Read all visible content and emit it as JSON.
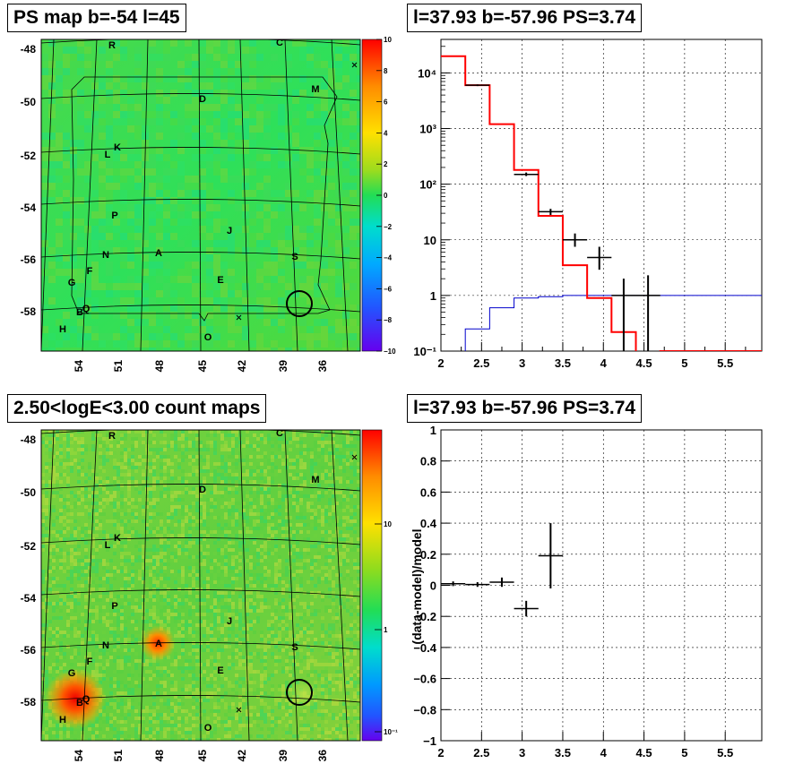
{
  "panels": {
    "top_left": {
      "title": "PS map b=-54 l=45",
      "type": "heatmap",
      "y_ticks": [
        "-48",
        "-50",
        "-52",
        "-54",
        "-56",
        "-58"
      ],
      "x_ticks": [
        "54",
        "51",
        "48",
        "45",
        "42",
        "39",
        "36"
      ],
      "colorbar_ticks": [
        "10",
        "8",
        "6",
        "4",
        "2",
        "0",
        "−2",
        "−4",
        "−6",
        "−8",
        "−10"
      ],
      "sources": [
        "R",
        "C",
        "M",
        "D",
        "K",
        "L",
        "P",
        "J",
        "N",
        "A",
        "S",
        "F",
        "E",
        "G",
        "B",
        "Q",
        "H",
        "O"
      ]
    },
    "bottom_left": {
      "title": "2.50<logE<3.00 count maps",
      "type": "heatmap",
      "y_ticks": [
        "-48",
        "-50",
        "-52",
        "-54",
        "-56",
        "-58"
      ],
      "x_ticks": [
        "54",
        "51",
        "48",
        "45",
        "42",
        "39",
        "36"
      ],
      "colorbar_ticks": [
        "10",
        "1",
        "10⁻¹"
      ],
      "sources": [
        "R",
        "C",
        "M",
        "D",
        "K",
        "L",
        "P",
        "J",
        "N",
        "A",
        "S",
        "F",
        "E",
        "G",
        "B",
        "Q",
        "H",
        "O"
      ]
    },
    "top_right": {
      "title": "l=37.93 b=-57.96 PS=3.74",
      "x_ticks": [
        "2",
        "2.5",
        "3",
        "3.5",
        "4",
        "4.5",
        "5",
        "5.5"
      ],
      "y_ticks": [
        "10⁻¹",
        "1",
        "10",
        "10²",
        "10³",
        "10⁴"
      ]
    },
    "bottom_right": {
      "title": "l=37.93 b=-57.96 PS=3.74",
      "ylabel": "(data-model)/model",
      "x_ticks": [
        "2",
        "2.5",
        "3",
        "3.5",
        "4",
        "4.5",
        "5",
        "5.5"
      ],
      "y_ticks": [
        "1",
        "0.8",
        "0.6",
        "0.4",
        "0.2",
        "0",
        "−0.2",
        "−0.4",
        "−0.6",
        "−0.8",
        "−1"
      ]
    }
  },
  "colors": {
    "model": "#ff0000",
    "data": "#000000",
    "background_model": "#0000cc",
    "grid": "#000000",
    "map_base": "#33dd33"
  },
  "chart_data": [
    {
      "type": "line",
      "title": "l=37.93 b=-57.96 PS=3.74",
      "log_y": true,
      "xlim": [
        2,
        5.95
      ],
      "ylim": [
        0.1,
        40000
      ],
      "grid": true,
      "model_steps": {
        "edges": [
          2.0,
          2.3,
          2.6,
          2.9,
          3.2,
          3.5,
          3.8,
          4.1,
          4.4,
          4.7,
          5.0,
          5.3,
          5.6,
          5.95
        ],
        "values": [
          20000,
          6000,
          1200,
          180,
          27,
          3.5,
          0.9,
          0.22,
          0.09,
          0.1,
          0.1,
          0.1,
          0.1
        ]
      },
      "background_steps": {
        "edges": [
          2.0,
          2.3,
          2.6,
          2.9,
          3.2,
          3.5,
          3.8,
          4.1,
          4.4,
          4.7,
          5.0,
          5.3,
          5.6,
          5.95
        ],
        "values": [
          0.05,
          0.25,
          0.6,
          0.9,
          0.95,
          1.0,
          1.0,
          1.0,
          1.0,
          1.0,
          1.0,
          1.0,
          1.0
        ]
      },
      "data_points": [
        {
          "x": 2.45,
          "xerr": 0.15,
          "y": 6000,
          "ylo": 5800,
          "yhi": 6200
        },
        {
          "x": 3.05,
          "xerr": 0.15,
          "y": 150,
          "ylo": 140,
          "yhi": 162
        },
        {
          "x": 3.35,
          "xerr": 0.15,
          "y": 32,
          "ylo": 28,
          "yhi": 36
        },
        {
          "x": 3.65,
          "xerr": 0.15,
          "y": 10,
          "ylo": 7.5,
          "yhi": 13
        },
        {
          "x": 3.95,
          "xerr": 0.15,
          "y": 4.8,
          "ylo": 2.9,
          "yhi": 7.5
        },
        {
          "x": 4.25,
          "xerr": 0.15,
          "y": 1,
          "ylo": 0.1,
          "yhi": 2
        },
        {
          "x": 4.55,
          "xerr": 0.15,
          "y": 1,
          "ylo": 0.1,
          "yhi": 2.3
        }
      ]
    },
    {
      "type": "scatter",
      "title": "l=37.93 b=-57.96 PS=3.74",
      "ylabel": "(data-model)/model",
      "xlim": [
        2,
        5.95
      ],
      "ylim": [
        -1,
        1
      ],
      "grid": true,
      "data_points": [
        {
          "x": 2.15,
          "xerr": 0.15,
          "y": 0.01,
          "yerr": 0.015
        },
        {
          "x": 2.45,
          "xerr": 0.15,
          "y": 0.005,
          "yerr": 0.015
        },
        {
          "x": 2.75,
          "xerr": 0.15,
          "y": 0.02,
          "yerr": 0.03
        },
        {
          "x": 3.05,
          "xerr": 0.15,
          "y": -0.15,
          "yerr": 0.05
        },
        {
          "x": 3.35,
          "xerr": 0.15,
          "y": 0.19,
          "yerr": 0.21
        }
      ]
    }
  ]
}
